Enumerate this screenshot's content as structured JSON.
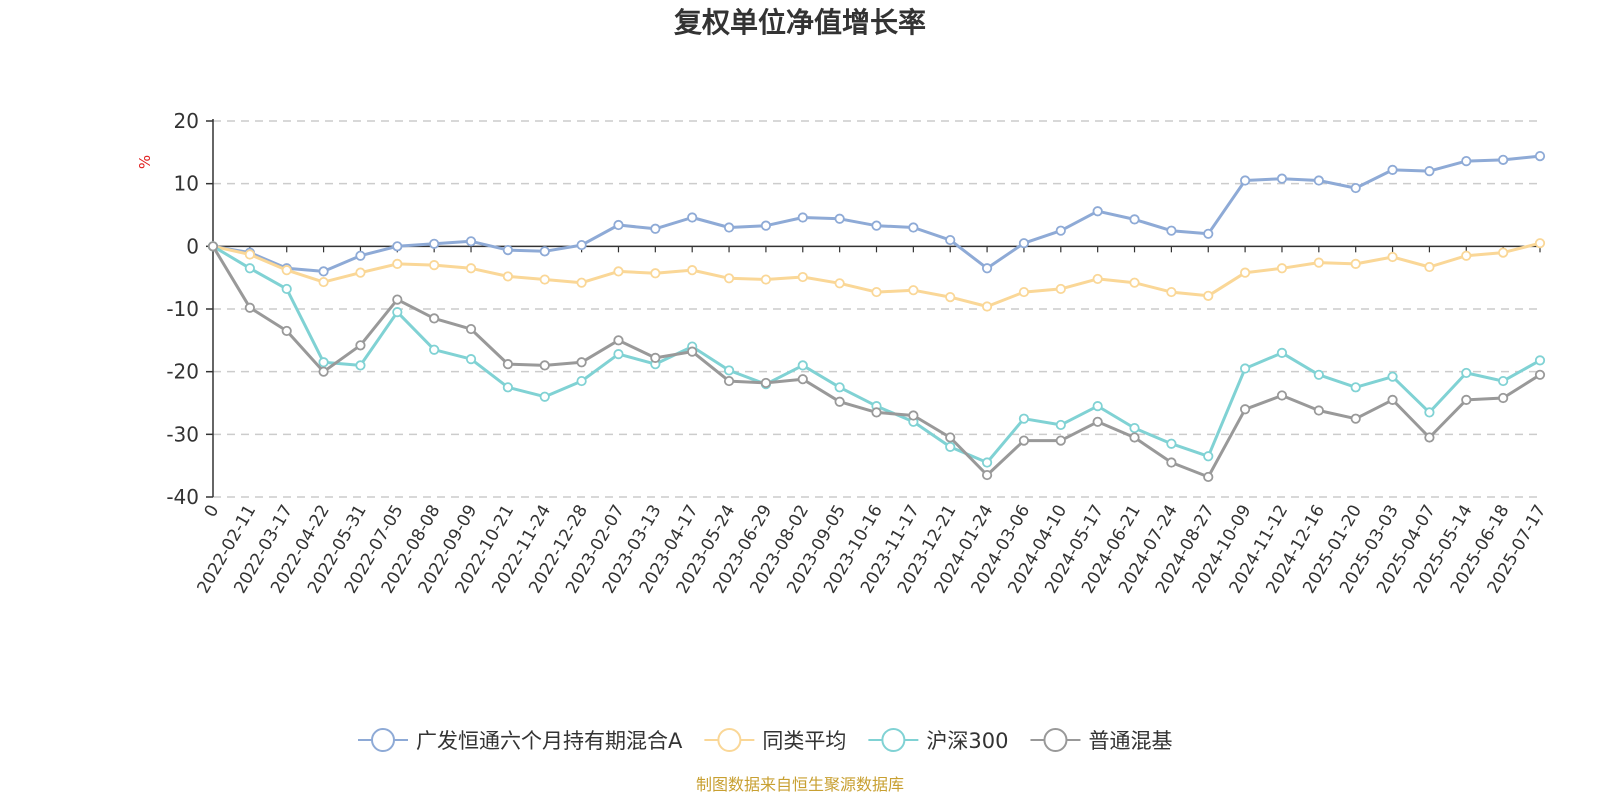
{
  "chart_data": {
    "type": "line",
    "title": "复权单位净值增长率",
    "ylabel": "%",
    "xlabel": "",
    "ylim": [
      -40,
      20
    ],
    "yticks": [
      20,
      10,
      0,
      -10,
      -20,
      -30,
      -40
    ],
    "grid": true,
    "legend_position": "bottom",
    "source_note": "制图数据来自恒生聚源数据库",
    "x_tick_labels": [
      "0",
      "2022-02-11",
      "2022-03-17",
      "2022-04-22",
      "2022-05-31",
      "2022-07-05",
      "2022-08-08",
      "2022-09-09",
      "2022-10-21",
      "2022-11-24",
      "2022-12-28",
      "2023-02-07",
      "2023-03-13",
      "2023-04-17",
      "2023-05-24",
      "2023-06-29",
      "2023-08-02",
      "2023-09-05",
      "2023-10-16",
      "2023-11-17",
      "2023-12-21",
      "2024-01-24",
      "2024-03-06",
      "2024-04-10",
      "2024-05-17",
      "2024-06-21",
      "2024-07-24",
      "2024-08-27",
      "2024-10-09",
      "2024-11-12",
      "2024-12-16",
      "2025-01-20",
      "2025-03-03",
      "2025-04-07",
      "2025-05-14",
      "2025-06-18",
      "2025-07-17"
    ],
    "x": [
      "0",
      "2022-02-11",
      "2022-03-17",
      "2022-04-22",
      "2022-05-31",
      "2022-07-05",
      "2022-08-08",
      "2022-09-09",
      "2022-10-21",
      "2022-11-24",
      "2022-12-28",
      "2023-02-07",
      "2023-03-13",
      "2023-04-17",
      "2023-05-24",
      "2023-06-29",
      "2023-08-02",
      "2023-09-05",
      "2023-10-16",
      "2023-11-17",
      "2023-12-21",
      "2024-01-24",
      "2024-03-06",
      "2024-04-10",
      "2024-05-17",
      "2024-06-21",
      "2024-07-24",
      "2024-08-27",
      "2024-10-09",
      "2024-11-12",
      "2024-12-16",
      "2025-01-20",
      "2025-03-03",
      "2025-04-07",
      "2025-05-14",
      "2025-06-18",
      "2025-07-17"
    ],
    "series": [
      {
        "name": "广发恒通六个月持有期混合A",
        "color": "#8eaad6",
        "values": [
          0,
          -1.0,
          -3.5,
          -4.0,
          -1.5,
          0,
          0.4,
          0.8,
          -0.6,
          -0.8,
          0.2,
          3.4,
          2.8,
          4.6,
          3.0,
          3.3,
          4.6,
          4.4,
          3.3,
          3.0,
          1.0,
          -3.5,
          0.5,
          2.5,
          5.6,
          4.3,
          2.5,
          2.0,
          10.5,
          10.8,
          10.5,
          9.3,
          12.2,
          12.0,
          13.6,
          13.8,
          14.4
        ]
      },
      {
        "name": "同类平均",
        "color": "#fad797",
        "values": [
          0,
          -1.3,
          -3.8,
          -5.7,
          -4.2,
          -2.8,
          -3.0,
          -3.5,
          -4.8,
          -5.3,
          -5.8,
          -4.0,
          -4.3,
          -3.8,
          -5.1,
          -5.3,
          -4.9,
          -5.9,
          -7.3,
          -7.0,
          -8.1,
          -9.6,
          -7.3,
          -6.8,
          -5.2,
          -5.8,
          -7.3,
          -7.9,
          -4.2,
          -3.5,
          -2.6,
          -2.8,
          -1.7,
          -3.3,
          -1.5,
          -1.0,
          0.5
        ]
      },
      {
        "name": "沪深300",
        "color": "#80d2d4",
        "values": [
          0,
          -3.5,
          -6.8,
          -18.5,
          -19.0,
          -10.5,
          -16.5,
          -18.0,
          -22.5,
          -24.0,
          -21.5,
          -17.2,
          -18.8,
          -16.0,
          -19.8,
          -22.0,
          -19.0,
          -22.5,
          -25.5,
          -28.0,
          -32.0,
          -34.5,
          -27.5,
          -28.5,
          -25.5,
          -29.0,
          -31.5,
          -33.5,
          -19.5,
          -17.0,
          -20.5,
          -22.5,
          -20.8,
          -26.5,
          -20.2,
          -21.5,
          -18.2
        ]
      },
      {
        "name": "普通混基",
        "color": "#999999",
        "values": [
          0,
          -9.8,
          -13.5,
          -20.0,
          -15.8,
          -8.5,
          -11.5,
          -13.2,
          -18.8,
          -19.0,
          -18.5,
          -15.0,
          -17.8,
          -16.8,
          -21.5,
          -21.8,
          -21.2,
          -24.8,
          -26.5,
          -27.0,
          -30.5,
          -36.5,
          -31.0,
          -31.0,
          -28.0,
          -30.5,
          -34.5,
          -36.8,
          -26.0,
          -23.8,
          -26.2,
          -27.5,
          -24.5,
          -30.5,
          -24.5,
          -24.2,
          -20.5
        ]
      }
    ]
  }
}
